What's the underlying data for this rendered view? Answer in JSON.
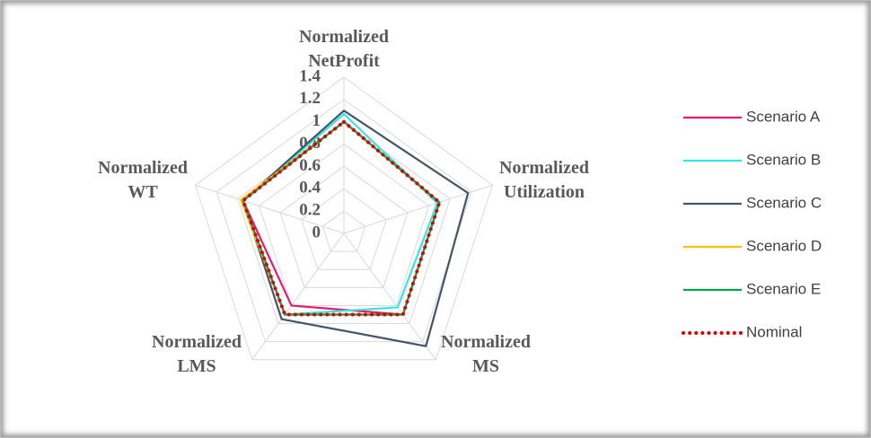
{
  "chart_data": {
    "type": "radar",
    "categories": [
      "Normalized NetProfit",
      "Normalized Utilization",
      "Normalized MS",
      "Normalized LMS",
      "Normalized WT"
    ],
    "ylim": [
      0,
      1.4
    ],
    "yticks": [
      0,
      0.2,
      0.4,
      0.6,
      0.8,
      1,
      1.2,
      1.4
    ],
    "grid": true,
    "legend": "right",
    "series": [
      {
        "name": "Scenario A",
        "color": "#e8196e",
        "values": [
          1.0,
          0.9,
          0.9,
          0.8,
          0.95
        ]
      },
      {
        "name": "Scenario B",
        "color": "#33e6e6",
        "values": [
          1.07,
          0.88,
          0.82,
          0.9,
          0.95
        ]
      },
      {
        "name": "Scenario C",
        "color": "#44546a",
        "values": [
          1.1,
          1.17,
          1.25,
          0.95,
          0.95
        ]
      },
      {
        "name": "Scenario D",
        "color": "#ffc000",
        "values": [
          1.0,
          0.9,
          0.9,
          0.9,
          0.97
        ]
      },
      {
        "name": "Scenario E",
        "color": "#00a651",
        "values": [
          1.0,
          0.9,
          0.9,
          0.9,
          0.95
        ]
      },
      {
        "name": "Nominal",
        "color": "#e00000",
        "dotted": true,
        "values": [
          1.0,
          0.9,
          0.9,
          0.9,
          0.95
        ]
      }
    ]
  }
}
